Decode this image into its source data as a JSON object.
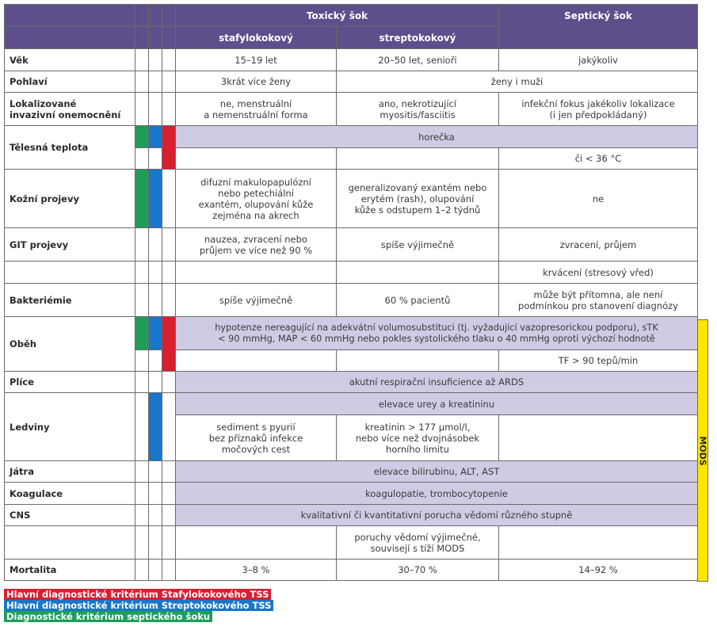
{
  "header": {
    "toxic": "Toxický šok",
    "septic": "Septický šok",
    "staph": "stafylokokový",
    "strep": "streptokokový"
  },
  "rows": {
    "vek": {
      "label": "Věk",
      "staph": "15–19 let",
      "strep": "20–50 let, senioři",
      "septic": "jakýkoliv"
    },
    "pohlavi": {
      "label": "Pohlaví",
      "staph": "3krát více ženy",
      "rest": "ženy i muži"
    },
    "lokal": {
      "label_1": "Lokalizované",
      "label_2": "invazivní onemocnění",
      "staph_1": "ne, menstruální",
      "staph_2": "a nemenstruální forma",
      "strep_1": "ano, nekrotizující",
      "strep_2": "myositis/fasciitis",
      "septic_1": "infekční fokus jakékoliv lokalizace",
      "septic_2": "(i jen předpokládaný)"
    },
    "teplota": {
      "label": "Tělesná teplota",
      "all": "horečka",
      "septic": "či < 36 °C"
    },
    "kozni": {
      "label": "Kožní projevy",
      "staph_1": "difuzní makulopapulózní",
      "staph_2": "nebo petechiální",
      "staph_3": "exantém, olupování kůže",
      "staph_4": "zejména na akrech",
      "strep_1": "generalizovaný exantém nebo",
      "strep_2": "erytém (rash), olupování",
      "strep_3": "kůže s odstupem 1–2 týdnů",
      "septic": "ne"
    },
    "git": {
      "label": "GIT projevy",
      "staph_1": "nauzea, zvracení nebo",
      "staph_2": "průjem ve více než 90 %",
      "strep": "spíše výjimečně",
      "septic": "zvracení, průjem",
      "septic_extra": "krvácení (stresový vřed)"
    },
    "bakt": {
      "label": "Bakteriémie",
      "staph": "spíše výjimečně",
      "strep": "60 % pacientů",
      "septic_1": "může být přítomna, ale není",
      "septic_2": "podmínkou pro stanovení diagnózy"
    },
    "obeh": {
      "label": "Oběh",
      "all_1": "hypotenze nereagující na adekvátní volumosubstituci (tj. vyžadující vazopresorickou podporu), sTK",
      "all_2": "< 90 mmHg, MAP < 60 mmHg nebo pokles systolického tlaku o 40 mmHg oproti výchozí hodnotě",
      "septic": "TF > 90 tepů/min"
    },
    "plice": {
      "label": "Plíce",
      "all": "akutní respirační insuficience až ARDS"
    },
    "ledviny": {
      "label": "Ledviny",
      "all": "elevace urey a kreatininu",
      "staph_1": "sediment s pyurií",
      "staph_2": "bez příznaků infekce",
      "staph_3": "močových cest",
      "strep_1": "kreatinin > 177 µmol/l,",
      "strep_2": "nebo více než dvojnásobek",
      "strep_3": "horního limitu"
    },
    "jatra": {
      "label": "Játra",
      "all": "elevace bilirubinu, ALT, AST"
    },
    "koag": {
      "label": "Koagulace",
      "all": "koagulopatie, trombocytopenie"
    },
    "cns": {
      "label": "CNS",
      "all": "kvalitativní či kvantitativní porucha vědomí různého stupně",
      "strep_1": "poruchy vědomí výjimečné,",
      "strep_2": "souvisejí s tíží MODS"
    },
    "mort": {
      "label": "Mortalita",
      "staph": "3–8 %",
      "strep": "30–70 %",
      "septic": "14–92 %"
    }
  },
  "mods_label": "MODS",
  "legend": {
    "red": "Hlavní diagnostické kritérium Stafylokokového TSS",
    "blue": "Hlavní diagnostické kritérium Streptokokového TSS",
    "green": "Diagnostické kritérium septického šoku"
  },
  "colors": {
    "header": "#5d4e8c",
    "shade": "#cfcbe4",
    "red": "#d71f30",
    "blue": "#1976c9",
    "green": "#1e9e57",
    "mods": "#ffe600"
  }
}
